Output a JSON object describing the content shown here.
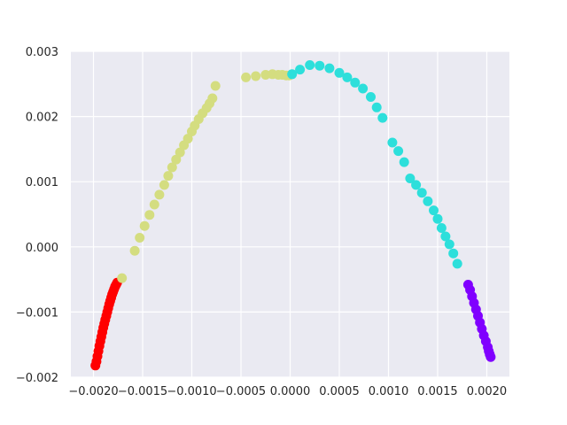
{
  "chart_data": {
    "type": "scatter",
    "title": "",
    "xlabel": "",
    "ylabel": "",
    "xlim": [
      -0.00223,
      0.00223
    ],
    "ylim": [
      -0.002,
      0.003
    ],
    "grid": true,
    "background": "#eaeaf2",
    "x_ticks": [
      {
        "value": -0.002,
        "label": "−0.0020"
      },
      {
        "value": -0.0015,
        "label": "−0.0015"
      },
      {
        "value": -0.001,
        "label": "−0.0010"
      },
      {
        "value": -0.0005,
        "label": "−0.0005"
      },
      {
        "value": 0.0,
        "label": "0.0000"
      },
      {
        "value": 0.0005,
        "label": "0.0005"
      },
      {
        "value": 0.001,
        "label": "0.0010"
      },
      {
        "value": 0.0015,
        "label": "0.0015"
      },
      {
        "value": 0.002,
        "label": "0.0020"
      }
    ],
    "y_ticks": [
      {
        "value": -0.002,
        "label": "−0.002"
      },
      {
        "value": -0.001,
        "label": "−0.001"
      },
      {
        "value": 0.0,
        "label": "0.000"
      },
      {
        "value": 0.001,
        "label": "0.001"
      },
      {
        "value": 0.002,
        "label": "0.002"
      },
      {
        "value": 0.003,
        "label": "0.003"
      }
    ],
    "series": [
      {
        "color": "#ff0000",
        "x": [
          -0.00198,
          -0.00197,
          -0.00196,
          -0.00195,
          -0.00194,
          -0.00193,
          -0.00192,
          -0.00191,
          -0.0019,
          -0.00189,
          -0.00188,
          -0.00187,
          -0.00186,
          -0.00185,
          -0.00184,
          -0.00183,
          -0.00182,
          -0.00181,
          -0.0018,
          -0.00179,
          -0.00178,
          -0.00177,
          -0.00176
        ],
        "y": [
          -0.00182,
          -0.00176,
          -0.00168,
          -0.0016,
          -0.00152,
          -0.00145,
          -0.00138,
          -0.00131,
          -0.00124,
          -0.00118,
          -0.00112,
          -0.00106,
          -0.001,
          -0.00094,
          -0.00088,
          -0.00083,
          -0.00078,
          -0.00073,
          -0.00069,
          -0.00065,
          -0.00061,
          -0.00058,
          -0.00055
        ]
      },
      {
        "color": "#d4dd80",
        "x": [
          -0.00171,
          -0.00158,
          -0.00153,
          -0.00148,
          -0.00143,
          -0.00138,
          -0.00133,
          -0.00128,
          -0.00124,
          -0.0012,
          -0.00116,
          -0.00112,
          -0.00108,
          -0.00104,
          -0.001,
          -0.00097,
          -0.00093,
          -0.00089,
          -0.00085,
          -0.00082,
          -0.00079,
          -0.00076,
          -0.00045,
          -0.00035,
          -0.00025,
          -0.00018,
          -0.00012,
          -8e-05,
          -4e-05,
          -1e-05
        ],
        "y": [
          -0.00048,
          -6e-05,
          0.00014,
          0.00032,
          0.00049,
          0.00065,
          0.0008,
          0.00095,
          0.00109,
          0.00122,
          0.00134,
          0.00145,
          0.00156,
          0.00166,
          0.00177,
          0.00186,
          0.00196,
          0.00205,
          0.00213,
          0.0022,
          0.00228,
          0.00247,
          0.0026,
          0.00262,
          0.00264,
          0.00265,
          0.00264,
          0.00264,
          0.00263,
          0.00263
        ]
      },
      {
        "color": "#2ddfdb",
        "x": [
          2e-05,
          0.0001,
          0.0002,
          0.0003,
          0.0004,
          0.0005,
          0.00058,
          0.00066,
          0.00074,
          0.00082,
          0.00088,
          0.00094,
          0.00104,
          0.0011,
          0.00116,
          0.00122,
          0.00128,
          0.00134,
          0.0014,
          0.00146,
          0.0015,
          0.00154,
          0.00158,
          0.00162,
          0.00166,
          0.0017
        ],
        "y": [
          0.00265,
          0.00272,
          0.00279,
          0.00278,
          0.00274,
          0.00267,
          0.0026,
          0.00252,
          0.00243,
          0.0023,
          0.00214,
          0.00198,
          0.0016,
          0.00147,
          0.0013,
          0.00105,
          0.00095,
          0.00083,
          0.0007,
          0.00056,
          0.00043,
          0.00029,
          0.00016,
          4e-05,
          -0.0001,
          -0.00026
        ]
      },
      {
        "color": "#8000ff",
        "x": [
          0.00181,
          0.00183,
          0.00185,
          0.00187,
          0.00189,
          0.00191,
          0.00193,
          0.00195,
          0.00197,
          0.00199,
          0.00201,
          0.00202,
          0.00203,
          0.00204
        ],
        "y": [
          -0.00058,
          -0.00066,
          -0.00076,
          -0.00086,
          -0.00096,
          -0.00106,
          -0.00116,
          -0.00126,
          -0.00136,
          -0.00145,
          -0.00154,
          -0.0016,
          -0.00165,
          -0.00169
        ]
      }
    ]
  }
}
